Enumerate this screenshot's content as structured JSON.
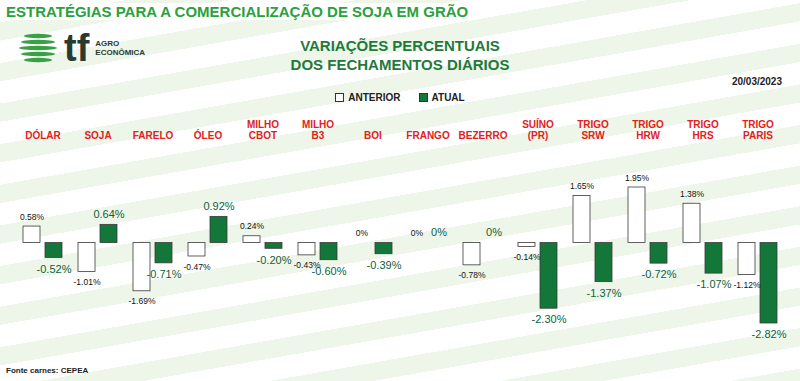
{
  "chart_data": {
    "type": "bar",
    "title": "ESTRATÉGIAS PARA A COMERCIALIZAÇÃO DE SOJA EM GRÃO",
    "subtitle": "VARIAÇÕES PERCENTUAIS\nDOS FECHAMENTOS DIÁRIOS",
    "annotations": {
      "logo": "tf",
      "logo_text": "AGRO\nECONÔMICA",
      "date": "20/03/2023",
      "source": "Fonte carnes: CEPEA"
    },
    "categories": [
      "DÓLAR",
      "SOJA",
      "FARELO",
      "ÓLEO",
      "MILHO\nCBOT",
      "MILHO\nB3",
      "BOI",
      "FRANGO",
      "BEZERRO",
      "SUÍNO\n(PR)",
      "TRIGO\nSRW",
      "TRIGO\nHRW",
      "TRIGO\nHRS",
      "TRIGO\nPARIS"
    ],
    "series": [
      {
        "name": "ANTERIOR",
        "color": "#ffffff",
        "values": [
          0.58,
          -1.01,
          -1.69,
          -0.47,
          0.24,
          -0.43,
          0,
          0,
          -0.78,
          -0.14,
          1.65,
          1.95,
          1.38,
          -1.12
        ],
        "value_labels": [
          "0.58%",
          "-1.01%",
          "-1.69%",
          "-0.47%",
          "0.24%",
          "-0.43%",
          "0%",
          "0%",
          "-0.78%",
          "-0.14%",
          "1.65%",
          "1.95%",
          "1.38%",
          "-1.12%"
        ]
      },
      {
        "name": "ATUAL",
        "color": "#13773a",
        "values": [
          -0.52,
          0.64,
          -0.71,
          0.92,
          -0.2,
          -0.6,
          -0.39,
          0,
          0,
          -2.3,
          -1.37,
          -0.72,
          -1.07,
          -2.82
        ],
        "value_labels": [
          "-0.52%",
          "0.64%",
          "-0.71%",
          "0.92%",
          "-0.20%",
          "-0.60%",
          "-0.39%",
          "0%",
          "0%",
          "-2.30%",
          "-1.37%",
          "-0.72%",
          "-1.07%",
          "-2.82%"
        ]
      }
    ],
    "data_labels": true,
    "tick_labels": "x",
    "legend": "top",
    "grid": false
  }
}
